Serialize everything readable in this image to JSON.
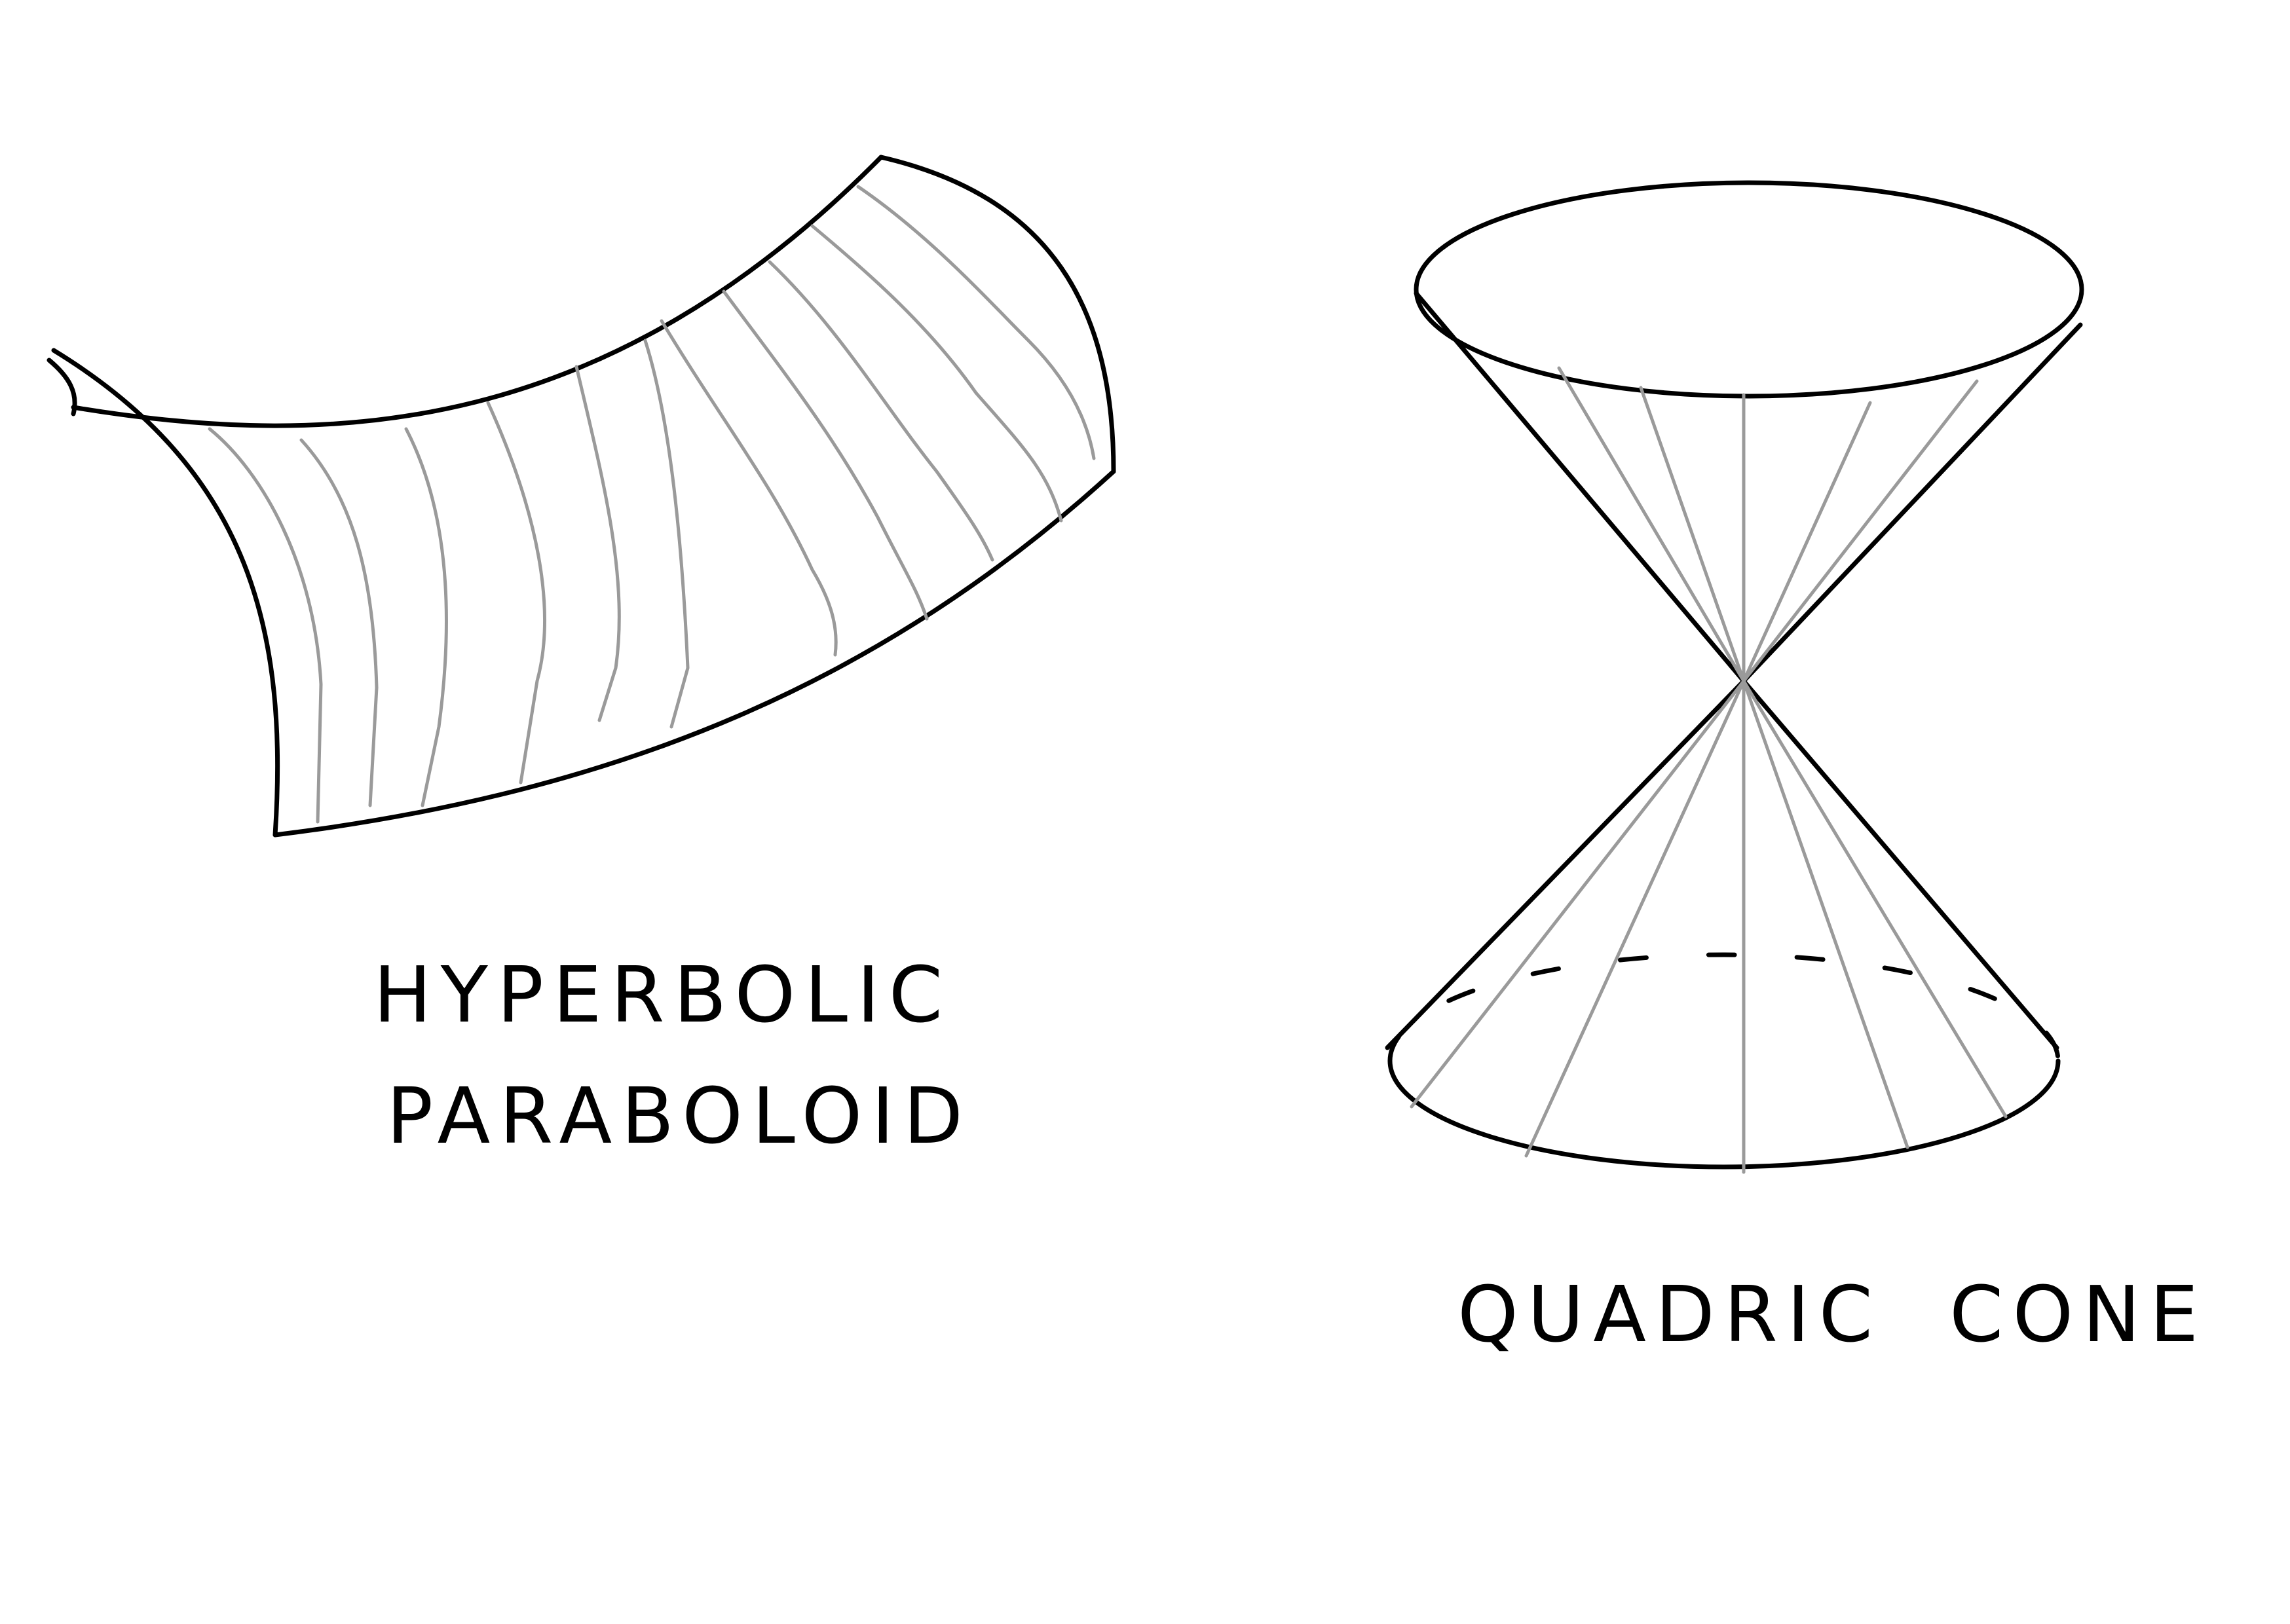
{
  "figures": [
    {
      "id": "hyperbolic-paraboloid",
      "label_lines": [
        "HYPERBOLIC",
        "PARABOLOID"
      ]
    },
    {
      "id": "quadric-cone",
      "label_lines": [
        "QUADRIC  CONE"
      ]
    }
  ],
  "colors": {
    "outline": "#000000",
    "ruling": "#9a9a9a",
    "background": "#ffffff"
  }
}
